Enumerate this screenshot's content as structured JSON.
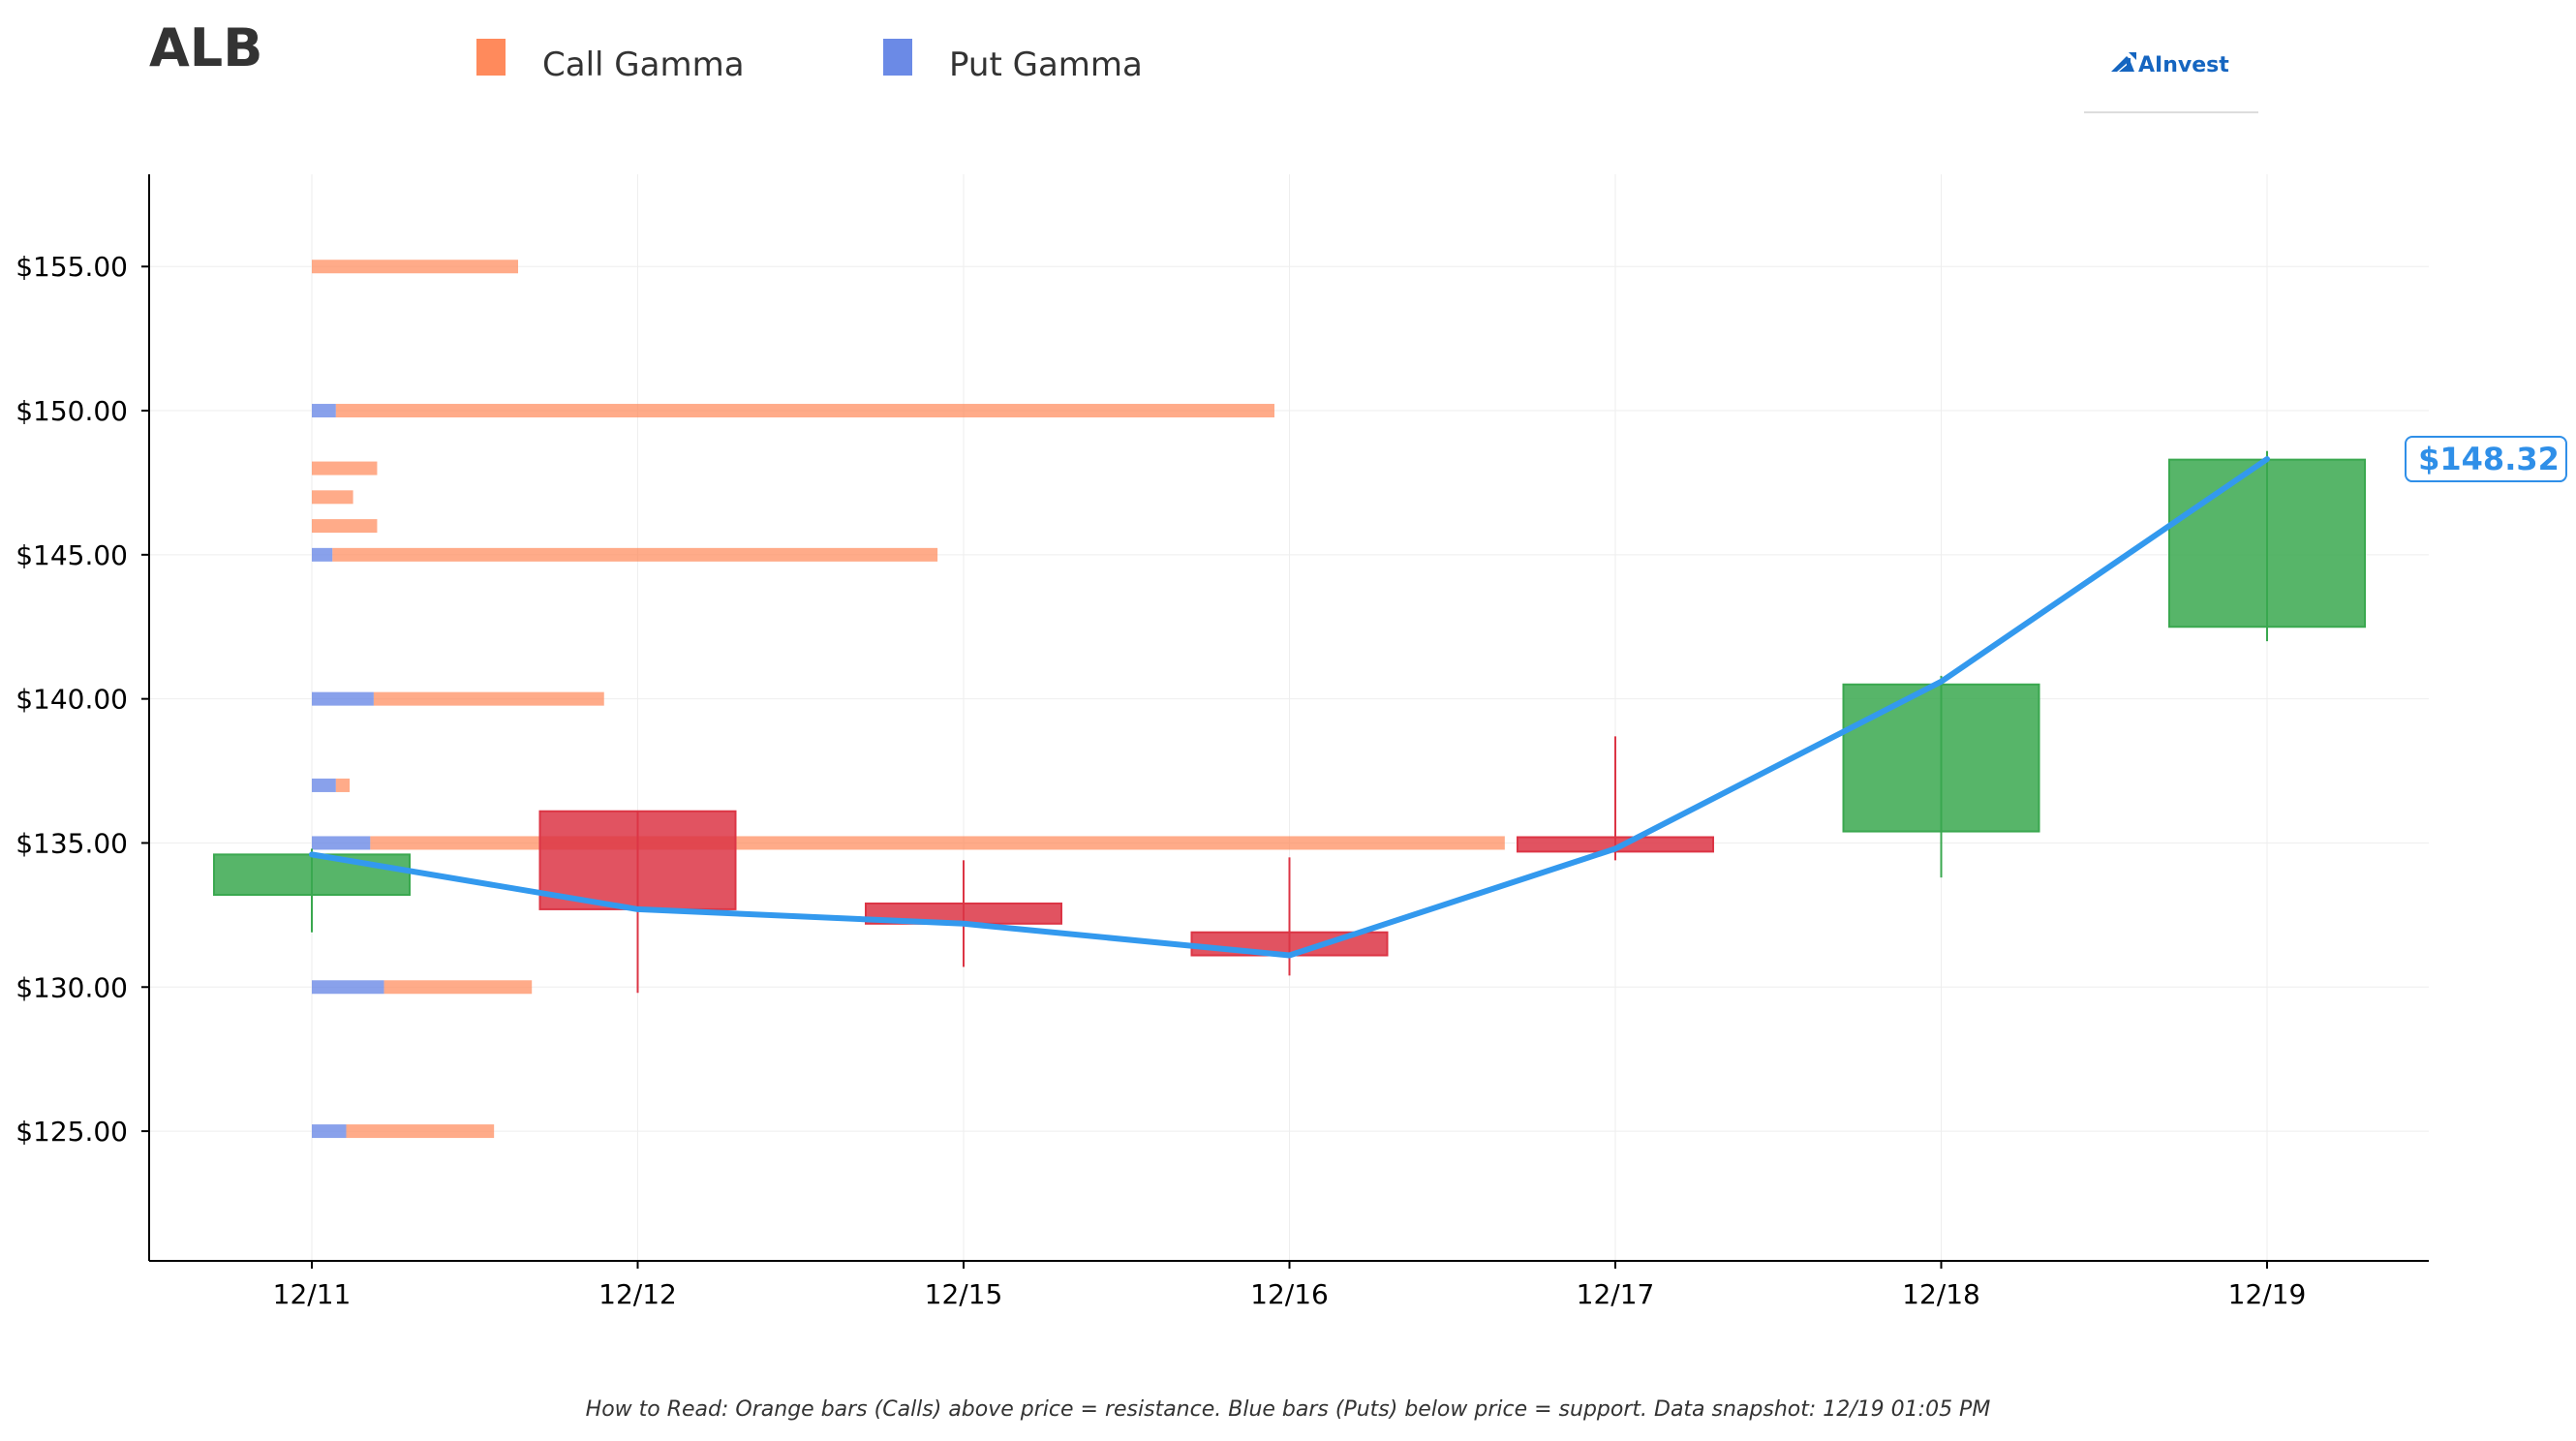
{
  "chart_data": {
    "type": "candlestick",
    "title": "ALB",
    "legend": [
      {
        "label": "Call Gamma",
        "color": "#ff8a5c"
      },
      {
        "label": "Put Gamma",
        "color": "#6b8ae6"
      }
    ],
    "legend_position": "top",
    "logo_text": "AInvest",
    "y_tick_labels": [
      "$125.00",
      "$130.00",
      "$135.00",
      "$140.00",
      "$145.00",
      "$150.00",
      "$155.00"
    ],
    "y_ticks": [
      125,
      130,
      135,
      140,
      145,
      150,
      155
    ],
    "ylim": [
      120.5,
      158.2
    ],
    "categories": [
      "12/11",
      "12/12",
      "12/15",
      "12/16",
      "12/17",
      "12/18",
      "12/19"
    ],
    "candles": [
      {
        "date": "12/11",
        "open": 133.2,
        "close": 134.6,
        "high": 134.8,
        "low": 131.9
      },
      {
        "date": "12/12",
        "open": 136.1,
        "close": 132.7,
        "high": 136.1,
        "low": 129.8
      },
      {
        "date": "12/15",
        "open": 132.9,
        "close": 132.2,
        "high": 134.4,
        "low": 130.7
      },
      {
        "date": "12/16",
        "open": 131.9,
        "close": 131.1,
        "high": 134.5,
        "low": 130.4
      },
      {
        "date": "12/17",
        "open": 135.2,
        "close": 134.7,
        "high": 138.7,
        "low": 134.4
      },
      {
        "date": "12/18",
        "open": 135.4,
        "close": 140.5,
        "high": 140.8,
        "low": 133.8
      },
      {
        "date": "12/19",
        "open": 142.5,
        "close": 148.3,
        "high": 148.6,
        "low": 142.0
      }
    ],
    "price_line": {
      "color": "#3399ee",
      "values": [
        134.6,
        132.7,
        132.2,
        131.1,
        134.8,
        140.6,
        148.32
      ]
    },
    "last_price_label": "$148.32",
    "gamma_bars": [
      {
        "strike": 125,
        "put": 0.1,
        "call": 0.43
      },
      {
        "strike": 130,
        "put": 0.21,
        "call": 0.43
      },
      {
        "strike": 135,
        "put": 0.17,
        "call": 3.3
      },
      {
        "strike": 137,
        "put": 0.07,
        "call": 0.04
      },
      {
        "strike": 140,
        "put": 0.18,
        "call": 0.67
      },
      {
        "strike": 145,
        "put": 0.06,
        "call": 1.76
      },
      {
        "strike": 146,
        "put": 0.0,
        "call": 0.19
      },
      {
        "strike": 147,
        "put": 0.0,
        "call": 0.12
      },
      {
        "strike": 148,
        "put": 0.0,
        "call": 0.19
      },
      {
        "strike": 150,
        "put": 0.07,
        "call": 2.73
      },
      {
        "strike": 155,
        "put": 0.0,
        "call": 0.6
      }
    ],
    "colors": {
      "up": "#3aa84f",
      "down": "#dc3545",
      "call": "#ff8a5c",
      "put": "#6b8ae6",
      "axis": "#000000",
      "grid": "#eeeeee"
    },
    "grid": true,
    "footnote": "How to Read: Orange bars (Calls) above price = resistance. Blue bars (Puts) below price = support. Data snapshot: 12/19 01:05 PM"
  }
}
